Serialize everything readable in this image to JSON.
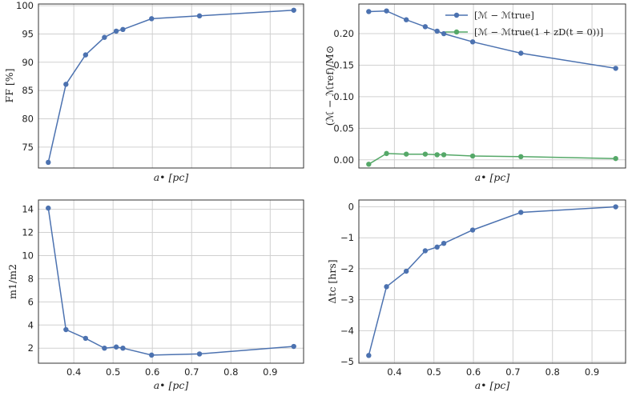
{
  "chart_data": [
    {
      "type": "line",
      "panel": "top-left",
      "xlabel": "a• [pc]",
      "ylabel": "FF [%]",
      "xlim": [
        0.31,
        0.985
      ],
      "ylim": [
        71.3,
        100.3
      ],
      "xticks": [],
      "yticks": [
        75,
        80,
        85,
        90,
        95,
        100
      ],
      "ytick_labels": [
        "75",
        "80",
        "85",
        "90",
        "95",
        "100"
      ],
      "grid": true,
      "series": [
        {
          "color": "#4c72b0",
          "x": [
            0.335,
            0.38,
            0.43,
            0.478,
            0.508,
            0.525,
            0.598,
            0.72,
            0.96
          ],
          "y": [
            72.3,
            86.1,
            91.3,
            94.4,
            95.5,
            95.8,
            97.7,
            98.2,
            99.2
          ]
        }
      ]
    },
    {
      "type": "line",
      "panel": "top-right",
      "xlabel": "a• [pc]",
      "ylabel": "(ℳ − ℳref)/M⊙",
      "xlim": [
        0.31,
        0.985
      ],
      "ylim": [
        -0.013,
        0.247
      ],
      "xticks": [],
      "yticks": [
        0.0,
        0.05,
        0.1,
        0.15,
        0.2
      ],
      "ytick_labels": [
        "0.00",
        "0.05",
        "0.10",
        "0.15",
        "0.20"
      ],
      "grid": true,
      "legend_position": "top-right",
      "series": [
        {
          "name": "[ℳ − ℳtrue]",
          "color": "#4c72b0",
          "x": [
            0.335,
            0.38,
            0.43,
            0.478,
            0.508,
            0.525,
            0.598,
            0.72,
            0.96
          ],
          "y": [
            0.235,
            0.236,
            0.222,
            0.211,
            0.204,
            0.2,
            0.187,
            0.169,
            0.145
          ]
        },
        {
          "name": "[ℳ − ℳtrue(1 + zD(t = 0))]",
          "color": "#55a868",
          "x": [
            0.335,
            0.38,
            0.43,
            0.478,
            0.508,
            0.525,
            0.598,
            0.72,
            0.96
          ],
          "y": [
            -0.007,
            0.01,
            0.009,
            0.009,
            0.008,
            0.008,
            0.006,
            0.005,
            0.002
          ]
        }
      ]
    },
    {
      "type": "line",
      "panel": "bottom-left",
      "xlabel": "a• [pc]",
      "ylabel": "m1/m2",
      "xlim": [
        0.31,
        0.985
      ],
      "ylim": [
        0.7,
        14.8
      ],
      "xticks": [
        0.4,
        0.5,
        0.6,
        0.7,
        0.8,
        0.9
      ],
      "xtick_labels": [
        "0.4",
        "0.5",
        "0.6",
        "0.7",
        "0.8",
        "0.9"
      ],
      "yticks": [
        2,
        4,
        6,
        8,
        10,
        12,
        14
      ],
      "ytick_labels": [
        "2",
        "4",
        "6",
        "8",
        "10",
        "12",
        "14"
      ],
      "grid": true,
      "series": [
        {
          "color": "#4c72b0",
          "x": [
            0.335,
            0.38,
            0.43,
            0.478,
            0.508,
            0.525,
            0.598,
            0.72,
            0.96
          ],
          "y": [
            14.1,
            3.6,
            2.85,
            2.0,
            2.1,
            2.0,
            1.4,
            1.5,
            2.15
          ]
        }
      ]
    },
    {
      "type": "line",
      "panel": "bottom-right",
      "xlabel": "a• [pc]",
      "ylabel": "Δtc [hrs]",
      "xlim": [
        0.31,
        0.985
      ],
      "ylim": [
        -5.05,
        0.22
      ],
      "xticks": [
        0.4,
        0.5,
        0.6,
        0.7,
        0.8,
        0.9
      ],
      "xtick_labels": [
        "0.4",
        "0.5",
        "0.6",
        "0.7",
        "0.8",
        "0.9"
      ],
      "yticks": [
        -5,
        -4,
        -3,
        -2,
        -1,
        0
      ],
      "ytick_labels": [
        "−5",
        "−4",
        "−3",
        "−2",
        "−1",
        "0"
      ],
      "grid": true,
      "series": [
        {
          "color": "#4c72b0",
          "x": [
            0.335,
            0.38,
            0.43,
            0.478,
            0.508,
            0.525,
            0.598,
            0.72,
            0.96
          ],
          "y": [
            -4.8,
            -2.58,
            -2.08,
            -1.42,
            -1.3,
            -1.18,
            -0.75,
            -0.18,
            0.0
          ]
        }
      ]
    }
  ]
}
